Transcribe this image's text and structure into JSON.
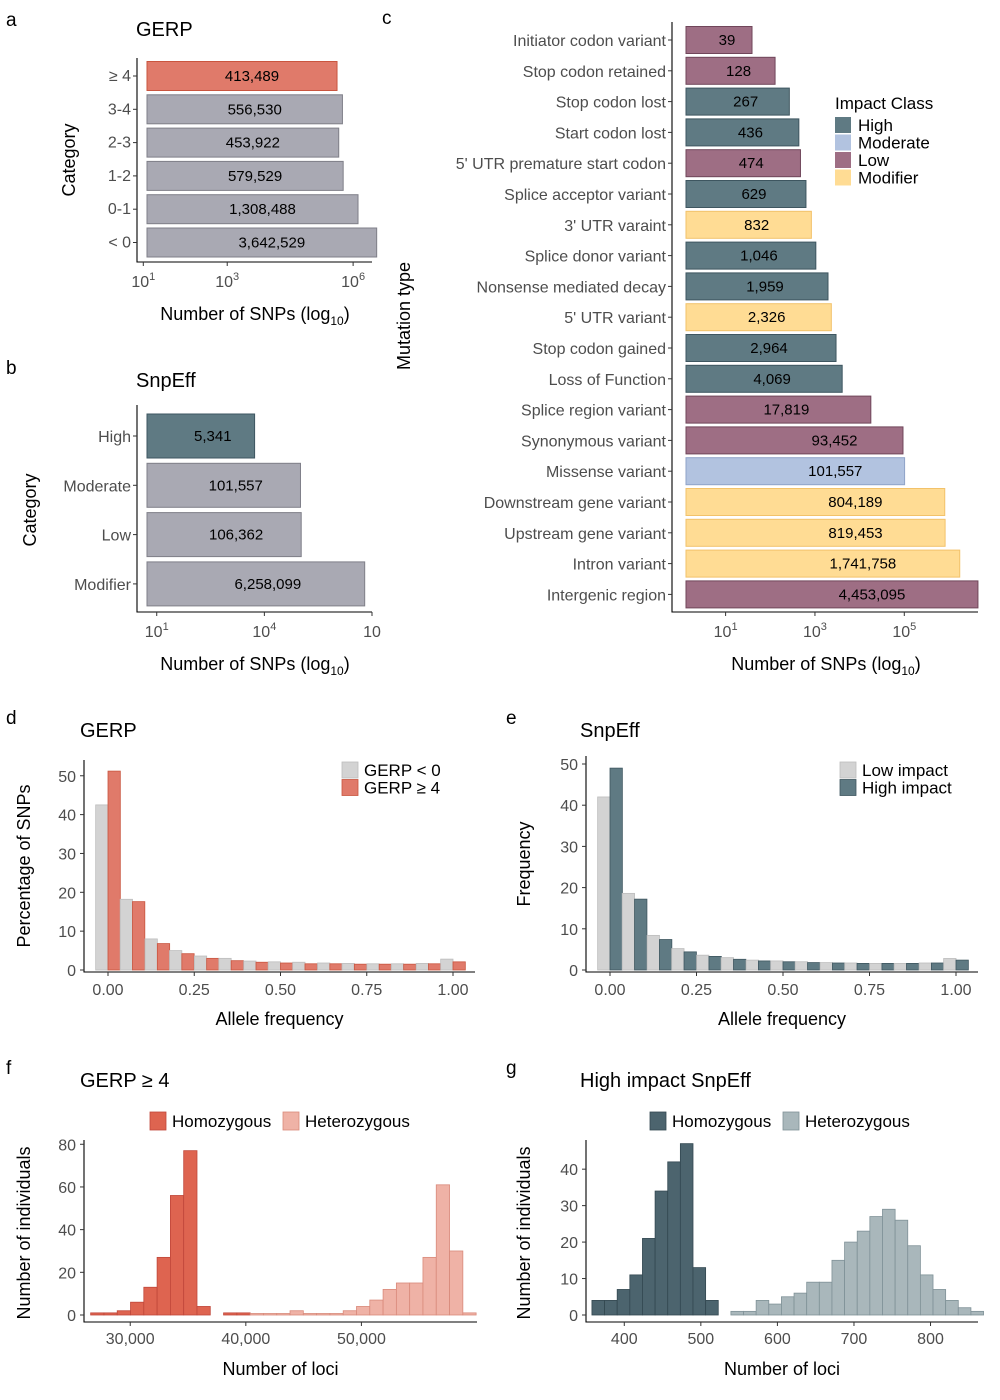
{
  "colors": {
    "gerp_hi": "#E07A6A",
    "gerp_hi_stroke": "#C9553F",
    "grey": "#A9A9B3",
    "grey_stroke": "#7F7F88",
    "light_grey": "#D3D3D3",
    "light_grey_stroke": "#BDBDBD",
    "high": "#5F7A83",
    "high_stroke": "#3E5660",
    "moderate": "#B2C3E0",
    "low": "#9E6E84",
    "low_stroke": "#70465A",
    "modifier": "#FFDC94",
    "hom_red": "#DE6450",
    "het_red": "#EFB2A6",
    "hom_slate": "#4C646E",
    "het_slate": "#A9B7BB"
  },
  "panels": {
    "a": {
      "label": "a",
      "title": "GERP"
    },
    "b": {
      "label": "b",
      "title": "SnpEff"
    },
    "c": {
      "label": "c"
    },
    "d": {
      "label": "d",
      "title": "GERP"
    },
    "e": {
      "label": "e",
      "title": "SnpEff"
    },
    "f": {
      "label": "f",
      "title": "GERP ≥ 4"
    },
    "g": {
      "label": "g",
      "title": "High impact SnpEff"
    }
  },
  "chart_data": [
    {
      "id": "a",
      "type": "bar",
      "orientation": "horizontal",
      "title": "GERP",
      "ylabel": "Category",
      "xlabel": "Number of SNPs (log",
      "xlabel_sub": "10",
      "xlabel_end": ")",
      "log_scale": true,
      "xticks": [
        {
          "exp": "1",
          "v": 10
        },
        {
          "exp": "3",
          "v": 1000
        },
        {
          "exp": "6",
          "v": 1000000
        }
      ],
      "categories": [
        "≥ 4",
        "3-4",
        "2-3",
        "1-2",
        "0-1",
        "< 0"
      ],
      "values": [
        413489,
        556530,
        453922,
        579529,
        1308488,
        3642529
      ],
      "value_labels": [
        "413,489",
        "556,530",
        "453,922",
        "579,529",
        "1,308,488",
        "3,642,529"
      ],
      "highlight": "≥ 4"
    },
    {
      "id": "b",
      "type": "bar",
      "orientation": "horizontal",
      "title": "SnpEff",
      "ylabel": "Category",
      "xlabel": "Number of SNPs (log",
      "xlabel_sub": "10",
      "xlabel_end": ")",
      "log_scale": true,
      "xticks": [
        {
          "base": "10",
          "exp": "1",
          "v": 10
        },
        {
          "base": "10",
          "exp": "4",
          "v": 10000
        },
        {
          "base": "10",
          "exp": "",
          "v": 10000000
        }
      ],
      "categories": [
        "High",
        "Moderate",
        "Low",
        "Modifier"
      ],
      "values": [
        5341,
        101557,
        106362,
        6258099
      ],
      "value_labels": [
        "5,341",
        "101,557",
        "106,362",
        "6,258,099"
      ]
    },
    {
      "id": "c",
      "type": "bar",
      "orientation": "horizontal",
      "ylabel": "Mutation type",
      "xlabel": "Number of SNPs (log",
      "xlabel_sub": "10",
      "xlabel_end": ")",
      "log_scale": true,
      "xticks": [
        {
          "exp": "1",
          "v": 10
        },
        {
          "exp": "3",
          "v": 1000
        },
        {
          "exp": "5",
          "v": 100000
        }
      ],
      "legend_title": "Impact Class",
      "legend": [
        "High",
        "Moderate",
        "Low",
        "Modifier"
      ],
      "categories": [
        "Initiator codon variant",
        "Stop codon retained",
        "Stop codon lost",
        "Start codon lost",
        "5' UTR premature start codon",
        "Splice acceptor variant",
        "3' UTR varaint",
        "Splice donor variant",
        "Nonsense mediated decay",
        "5' UTR variant",
        "Stop codon gained",
        "Loss of Function",
        "Splice region variant",
        "Synonymous variant",
        "Missense variant",
        "Downstream gene variant",
        "Upstream gene variant",
        "Intron variant",
        "Intergenic region"
      ],
      "values": [
        39,
        128,
        267,
        436,
        474,
        629,
        832,
        1046,
        1959,
        2326,
        2964,
        4069,
        17819,
        93452,
        101557,
        804189,
        819453,
        1741758,
        4453095
      ],
      "value_labels": [
        "39",
        "128",
        "267",
        "436",
        "474",
        "629",
        "832",
        "1,046",
        "1,959",
        "2,326",
        "2,964",
        "4,069",
        "17,819",
        "93,452",
        "101,557",
        "804,189",
        "819,453",
        "1,741,758",
        "4,453,095"
      ],
      "impact": [
        "Low",
        "Low",
        "High",
        "High",
        "Low",
        "High",
        "Modifier",
        "High",
        "High",
        "Modifier",
        "High",
        "High",
        "Low",
        "Low",
        "Moderate",
        "Modifier",
        "Modifier",
        "Modifier",
        "Low"
      ]
    },
    {
      "id": "d",
      "type": "bar",
      "title": "GERP",
      "xlabel": "Allele frequency",
      "ylabel": "Percentage of SNPs",
      "xlim": [
        0,
        1
      ],
      "ylim": [
        0,
        52
      ],
      "xticks": [
        "0.00",
        "0.25",
        "0.50",
        "0.75",
        "1.00"
      ],
      "yticks": [
        0,
        10,
        20,
        30,
        40,
        50
      ],
      "bin_centers": [
        0.0,
        0.071,
        0.143,
        0.214,
        0.286,
        0.357,
        0.429,
        0.5,
        0.571,
        0.643,
        0.714,
        0.786,
        0.857,
        0.929,
        1.0
      ],
      "series": [
        {
          "name": "GERP < 0",
          "values": [
            42.5,
            18.2,
            8.0,
            5.0,
            3.6,
            3.0,
            2.3,
            2.1,
            2.0,
            1.8,
            1.7,
            1.6,
            1.6,
            1.7,
            2.8
          ]
        },
        {
          "name": "GERP ≥ 4",
          "values": [
            51.2,
            17.6,
            6.8,
            4.2,
            3.0,
            2.4,
            2.0,
            1.8,
            1.6,
            1.6,
            1.5,
            1.5,
            1.5,
            1.6,
            2.1
          ]
        }
      ]
    },
    {
      "id": "e",
      "type": "bar",
      "title": "SnpEff",
      "xlabel": "Allele frequency",
      "ylabel": "Frequency",
      "xlim": [
        0,
        1
      ],
      "ylim": [
        0,
        50
      ],
      "xticks": [
        "0.00",
        "0.25",
        "0.50",
        "0.75",
        "1.00"
      ],
      "yticks": [
        0,
        10,
        20,
        30,
        40,
        50
      ],
      "bin_centers": [
        0.0,
        0.071,
        0.143,
        0.214,
        0.286,
        0.357,
        0.429,
        0.5,
        0.571,
        0.643,
        0.714,
        0.786,
        0.857,
        0.929,
        1.0
      ],
      "series": [
        {
          "name": "Low impact",
          "values": [
            42.0,
            18.6,
            8.4,
            5.2,
            3.6,
            3.0,
            2.4,
            2.2,
            2.0,
            1.8,
            1.7,
            1.6,
            1.6,
            1.7,
            2.8
          ]
        },
        {
          "name": "High impact",
          "values": [
            49.0,
            17.2,
            7.4,
            4.4,
            3.3,
            2.6,
            2.2,
            2.0,
            1.8,
            1.7,
            1.6,
            1.6,
            1.6,
            1.7,
            2.4
          ]
        }
      ]
    },
    {
      "id": "f",
      "type": "bar",
      "title": "GERP ≥ 4",
      "xlabel": "Number of loci",
      "ylabel": "Number of individuals",
      "xlim": [
        26000,
        60000
      ],
      "ylim": [
        0,
        82
      ],
      "xticks": [
        {
          "v": 30000,
          "label": "30,000"
        },
        {
          "v": 40000,
          "label": "40,000"
        },
        {
          "v": 50000,
          "label": "50,000"
        }
      ],
      "yticks": [
        0,
        20,
        40,
        60,
        80
      ],
      "bin_width": 1150,
      "series": [
        {
          "name": "Homozygous",
          "bins": [
            [
              27150,
              1
            ],
            [
              28300,
              1
            ],
            [
              29450,
              2
            ],
            [
              30600,
              6
            ],
            [
              31750,
              13
            ],
            [
              32900,
              27
            ],
            [
              34050,
              56
            ],
            [
              35200,
              77
            ],
            [
              36350,
              4
            ],
            [
              38650,
              1
            ],
            [
              39800,
              1
            ]
          ]
        },
        {
          "name": "Heterozygous",
          "bins": [
            [
              40950,
              0
            ],
            [
              42100,
              0
            ],
            [
              43250,
              0
            ],
            [
              44400,
              2
            ],
            [
              45550,
              0
            ],
            [
              46700,
              0
            ],
            [
              47850,
              0
            ],
            [
              49000,
              2
            ],
            [
              50150,
              4
            ],
            [
              51300,
              7
            ],
            [
              52450,
              12
            ],
            [
              53600,
              15
            ],
            [
              54750,
              15
            ],
            [
              55900,
              27
            ],
            [
              57050,
              61
            ],
            [
              58200,
              30
            ],
            [
              59350,
              1
            ]
          ]
        }
      ]
    },
    {
      "id": "g",
      "type": "bar",
      "title": "High impact SnpEff",
      "xlabel": "Number of loci",
      "ylabel": "Number of individuals",
      "xlim": [
        350,
        862
      ],
      "ylim": [
        0,
        48
      ],
      "xticks": [
        {
          "v": 400,
          "label": "400"
        },
        {
          "v": 500,
          "label": "500"
        },
        {
          "v": 600,
          "label": "600"
        },
        {
          "v": 700,
          "label": "700"
        },
        {
          "v": 800,
          "label": "800"
        }
      ],
      "yticks": [
        0,
        10,
        20,
        30,
        40
      ],
      "bin_width": 16.5,
      "series": [
        {
          "name": "Homozygous",
          "bins": [
            [
              366,
              4
            ],
            [
              382.5,
              4
            ],
            [
              399,
              7
            ],
            [
              415.5,
              11
            ],
            [
              432,
              21
            ],
            [
              448.5,
              34
            ],
            [
              465,
              42
            ],
            [
              481.5,
              47
            ],
            [
              498,
              13
            ],
            [
              514.5,
              4
            ]
          ]
        },
        {
          "name": "Heterozygous",
          "bins": [
            [
              547.5,
              1
            ],
            [
              564,
              1
            ],
            [
              580.5,
              4
            ],
            [
              597,
              3
            ],
            [
              613.5,
              5
            ],
            [
              630,
              6
            ],
            [
              646.5,
              9
            ],
            [
              663,
              9
            ],
            [
              679.5,
              15
            ],
            [
              696,
              20
            ],
            [
              712.5,
              23
            ],
            [
              729,
              27
            ],
            [
              745.5,
              29
            ],
            [
              762,
              26
            ],
            [
              778.5,
              19
            ],
            [
              795,
              11
            ],
            [
              811.5,
              7
            ],
            [
              828,
              4
            ],
            [
              844.5,
              2
            ],
            [
              861,
              1
            ]
          ]
        }
      ]
    }
  ]
}
